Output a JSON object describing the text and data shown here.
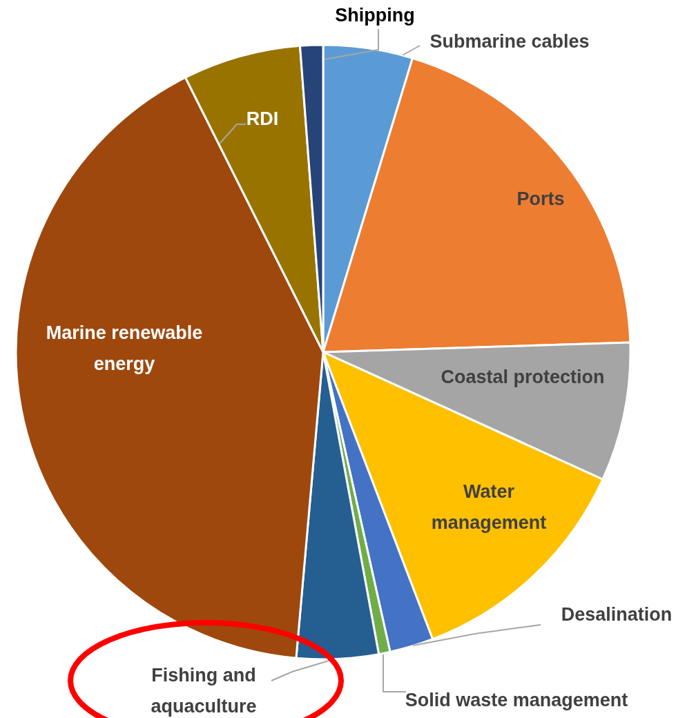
{
  "chart_data": {
    "type": "pie",
    "categories": [
      "Submarine cables",
      "Ports",
      "Coastal protection",
      "Water management",
      "Desalination",
      "Solid waste management",
      "Fishing and aquaculture",
      "Marine renewable energy",
      "RDI",
      "Shipping"
    ],
    "values": [
      4.7,
      19.8,
      7.3,
      12.4,
      2.3,
      0.6,
      4.3,
      41.2,
      6.2,
      1.2
    ],
    "colors": [
      "#5b9bd5",
      "#ed7d31",
      "#a5a5a5",
      "#ffc000",
      "#4472c4",
      "#70ad47",
      "#255e91",
      "#9e480e",
      "#997300",
      "#264478"
    ]
  }
}
